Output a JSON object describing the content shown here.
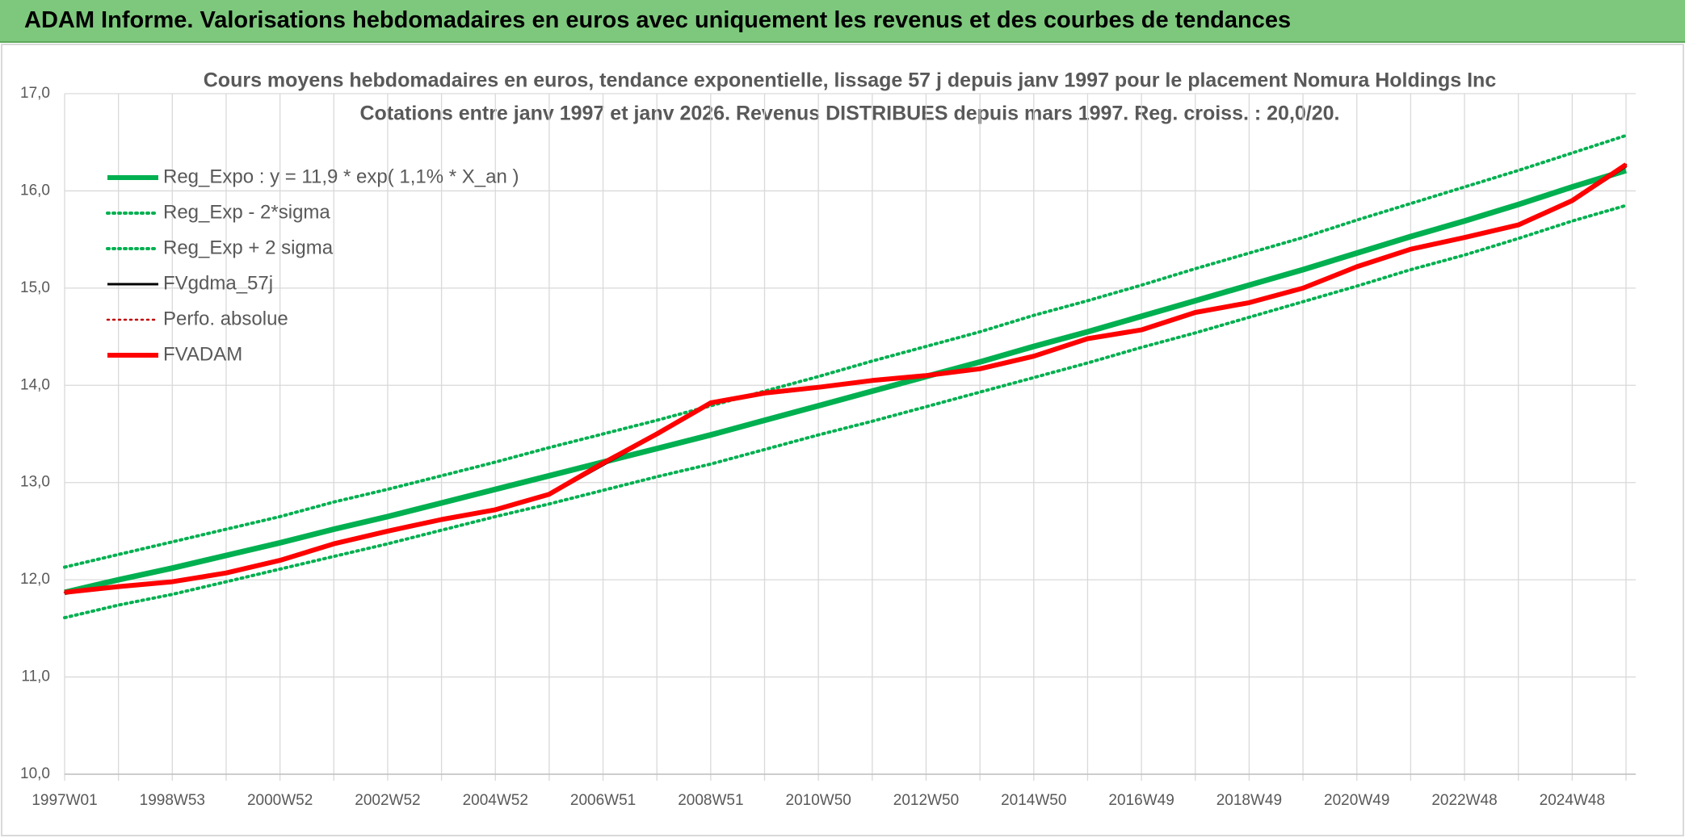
{
  "header": {
    "title": "ADAM Informe. Valorisations hebdomadaires en euros avec uniquement les revenus et des courbes de tendances"
  },
  "chart_data": {
    "type": "line",
    "title": "Cours moyens hebdomadaires en euros, tendance exponentielle, lissage 57 j depuis janv 1997 pour le placement Nomura Holdings Inc",
    "subtitle": "Cotations entre janv 1997 et janv 2026. Revenus DISTRIBUES depuis mars 1997. Reg. croiss. : 20,0/20.",
    "categories": [
      "1997W01",
      null,
      "1998W53",
      null,
      "2000W52",
      null,
      "2002W52",
      null,
      "2004W52",
      null,
      "2006W51",
      null,
      "2008W51",
      null,
      "2010W50",
      null,
      "2012W50",
      null,
      "2014W50",
      null,
      "2016W49",
      null,
      "2018W49",
      null,
      "2020W49",
      null,
      "2022W48",
      null,
      "2024W48",
      null
    ],
    "ylim": [
      10,
      17
    ],
    "yticks": [
      {
        "value": 10,
        "label": "10,0"
      },
      {
        "value": 11,
        "label": "11,0"
      },
      {
        "value": 12,
        "label": "12,0"
      },
      {
        "value": 13,
        "label": "13,0"
      },
      {
        "value": 14,
        "label": "14,0"
      },
      {
        "value": 15,
        "label": "15,0"
      },
      {
        "value": 16,
        "label": "16,0"
      },
      {
        "value": 17,
        "label": "17,0"
      }
    ],
    "grid": true,
    "legend": "top-left",
    "series": [
      {
        "name": "Reg_Expo : y = 11,9 * exp( 1,1% *  X_an )",
        "color": "#00b050",
        "style": "solid",
        "values": [
          11.87,
          12.0,
          12.12,
          12.25,
          12.38,
          12.52,
          12.65,
          12.79,
          12.93,
          13.07,
          13.21,
          13.35,
          13.49,
          13.64,
          13.79,
          13.94,
          14.09,
          14.24,
          14.4,
          14.55,
          14.71,
          14.87,
          15.03,
          15.19,
          15.36,
          15.53,
          15.69,
          15.86,
          16.04,
          16.21
        ]
      },
      {
        "name": "Reg_Exp - 2*sigma",
        "color": "#00b050",
        "style": "dotted",
        "values": [
          11.61,
          11.74,
          11.85,
          11.98,
          12.11,
          12.24,
          12.37,
          12.51,
          12.65,
          12.78,
          12.92,
          13.06,
          13.19,
          13.34,
          13.49,
          13.63,
          13.78,
          13.93,
          14.08,
          14.23,
          14.39,
          14.54,
          14.7,
          14.86,
          15.02,
          15.19,
          15.34,
          15.51,
          15.69,
          15.85
        ]
      },
      {
        "name": "Reg_Exp + 2 sigma",
        "color": "#00b050",
        "style": "dotted",
        "values": [
          12.13,
          12.26,
          12.39,
          12.52,
          12.65,
          12.8,
          12.93,
          13.07,
          13.21,
          13.36,
          13.5,
          13.64,
          13.79,
          13.94,
          14.09,
          14.25,
          14.4,
          14.55,
          14.72,
          14.87,
          15.03,
          15.2,
          15.36,
          15.52,
          15.7,
          15.87,
          16.04,
          16.21,
          16.39,
          16.57
        ]
      },
      {
        "name": "FVgdma_57j",
        "color": "#000000",
        "style": "solid",
        "values": [
          11.86,
          11.92,
          11.98,
          12.06,
          12.19,
          12.36,
          12.49,
          12.61,
          12.71,
          12.87,
          13.18,
          13.49,
          13.81,
          13.91,
          13.97,
          14.04,
          14.09,
          14.16,
          14.29,
          14.47,
          14.56,
          14.74,
          14.84,
          14.99,
          15.21,
          15.39,
          15.51,
          15.64,
          15.89,
          16.25
        ]
      },
      {
        "name": "Perfo. absolue",
        "color": "#c00000",
        "style": "dotted",
        "values": [
          11.87,
          11.93,
          11.98,
          12.07,
          12.2,
          12.37,
          12.5,
          12.62,
          12.72,
          12.88,
          13.2,
          13.5,
          13.82,
          13.92,
          13.98,
          14.05,
          14.1,
          14.17,
          14.3,
          14.48,
          14.57,
          14.75,
          14.85,
          15.0,
          15.22,
          15.4,
          15.52,
          15.65,
          15.9,
          16.27
        ]
      },
      {
        "name": "FVADAM",
        "color": "#ff0000",
        "style": "solid",
        "values": [
          11.87,
          11.93,
          11.98,
          12.07,
          12.2,
          12.37,
          12.5,
          12.62,
          12.72,
          12.88,
          13.2,
          13.5,
          13.82,
          13.92,
          13.98,
          14.05,
          14.1,
          14.17,
          14.3,
          14.48,
          14.57,
          14.75,
          14.85,
          15.0,
          15.22,
          15.4,
          15.52,
          15.65,
          15.9,
          16.27
        ]
      }
    ]
  }
}
